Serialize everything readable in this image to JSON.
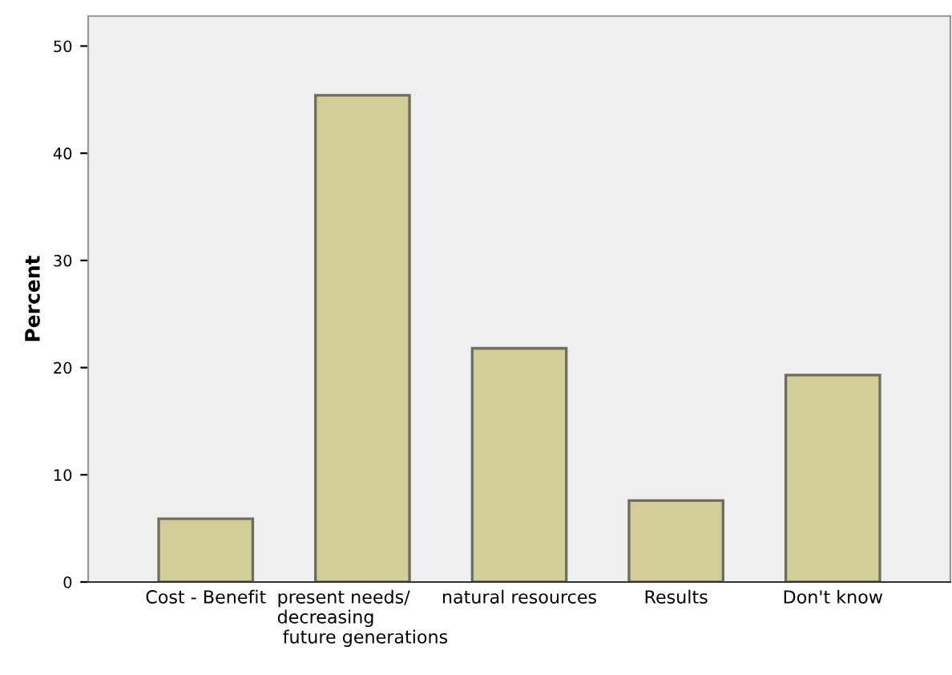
{
  "chart_data": {
    "type": "bar",
    "ylabel": "Percent",
    "categories": [
      "Cost - Benefit",
      "present needs/\ndecreasing\n future generations",
      "natural resources",
      "Results",
      "Don't know"
    ],
    "values": [
      5.9,
      45.4,
      21.8,
      7.6,
      19.3
    ],
    "color": "#d3ce98",
    "ylim": [
      0,
      52.8
    ],
    "yticks": [
      0,
      10,
      20,
      30,
      40,
      50
    ],
    "grid": false
  }
}
